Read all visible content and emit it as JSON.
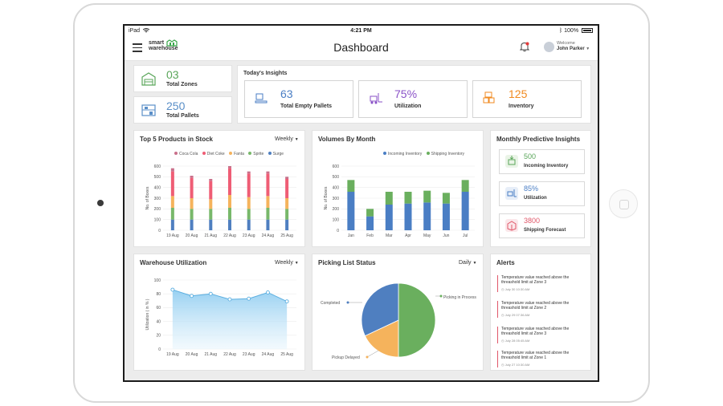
{
  "status_bar": {
    "device": "iPad",
    "wifi_icon": "wifi-icon",
    "time": "4:21 PM",
    "bluetooth_icon": "bluetooth-icon",
    "battery": "100%"
  },
  "header": {
    "menu_icon": "hamburger-icon",
    "logo_line1": "smart",
    "logo_line2": "warehouse",
    "title": "Dashboard",
    "bell_icon": "bell-icon",
    "welcome": "Welcome",
    "user_name": "John Parker"
  },
  "zones": {
    "value": "03",
    "label": "Total Zones",
    "color": "#5aa65a"
  },
  "pallets": {
    "value": "250",
    "label": "Total Pallets",
    "color": "#5a8fc8"
  },
  "insights": {
    "title": "Today's Insights",
    "items": [
      {
        "value": "63",
        "label": "Total Empty Pallets",
        "color": "#4a7ec4"
      },
      {
        "value": "75%",
        "label": "Utilization",
        "color": "#8a52c7"
      },
      {
        "value": "125",
        "label": "Inventory",
        "color": "#f08a1f"
      }
    ]
  },
  "top_products": {
    "title": "Top 5 Products in Stock",
    "filter": "Weekly",
    "legend": [
      "Coca Cola",
      "Diet Coke",
      "Fanta",
      "Sprite",
      "Surge"
    ],
    "ylabel": "No. of Boxes",
    "yticks": [
      "600",
      "500",
      "400",
      "300",
      "200",
      "100",
      "0"
    ]
  },
  "volumes": {
    "title": "Volumes By Month",
    "legend": [
      "Incoming Inventory",
      "Shipping Inventory"
    ],
    "ylabel": "No. of Boxes",
    "yticks": [
      "600",
      "500",
      "400",
      "300",
      "200",
      "100",
      "0"
    ]
  },
  "predictive": {
    "title": "Monthly Predictive Insights",
    "items": [
      {
        "value": "500",
        "label": "Incoming Inventory",
        "color": "#5aa65a"
      },
      {
        "value": "85%",
        "label": "Utilization",
        "color": "#4a7ec4"
      },
      {
        "value": "3800",
        "label": "Shipping Forecast",
        "color": "#e0586a"
      }
    ]
  },
  "warehouse_util": {
    "title": "Warehouse Utilization",
    "filter": "Weekly",
    "ylabel": "Utilization ( in % )",
    "yticks": [
      "100",
      "80",
      "60",
      "40",
      "20",
      "0"
    ]
  },
  "picking": {
    "title": "Picking List Status",
    "filter": "Daily",
    "labels": {
      "process": "Picking in Process",
      "completed": "Completed",
      "delayed": "Pickup Delayed"
    }
  },
  "alerts": {
    "title": "Alerts",
    "items": [
      {
        "text1": "Temperature value reached above the",
        "text2": "threashold limit at Zone 3",
        "time": "July 30 10:30 AM"
      },
      {
        "text1": "Temperature value reached above the",
        "text2": "threashold limit at Zone 2",
        "time": "July 29 07:36 AM"
      },
      {
        "text1": "Temperature value reached above the",
        "text2": "threashold limit at Zone 3",
        "time": "July 28 05:45 AM"
      },
      {
        "text1": "Temperature value reached above the",
        "text2": "threashold limit at Zone 1",
        "time": "July 27 10:30 AM"
      }
    ]
  },
  "chart_data": [
    {
      "type": "bar",
      "stacked": true,
      "title": "Top 5 Products in Stock",
      "ylabel": "No. of Boxes",
      "ylim": [
        0,
        600
      ],
      "categories": [
        "19 Aug",
        "20 Aug",
        "21 Aug",
        "22 Aug",
        "23 Aug",
        "24 Aug",
        "25 Aug"
      ],
      "colors": [
        "#c9708b",
        "#ef5d75",
        "#f5b35c",
        "#78b86a",
        "#4f7fc0"
      ],
      "series": [
        {
          "name": "Surge",
          "values": [
            100,
            100,
            100,
            100,
            100,
            100,
            100
          ]
        },
        {
          "name": "Sprite",
          "values": [
            110,
            100,
            100,
            110,
            100,
            110,
            100
          ]
        },
        {
          "name": "Fanta",
          "values": [
            110,
            100,
            90,
            120,
            110,
            110,
            100
          ]
        },
        {
          "name": "Diet Coke",
          "values": [
            230,
            190,
            170,
            250,
            220,
            210,
            180
          ]
        },
        {
          "name": "Coca Cola",
          "values": [
            30,
            20,
            20,
            20,
            20,
            20,
            20
          ]
        }
      ]
    },
    {
      "type": "bar",
      "stacked": true,
      "title": "Volumes By Month",
      "ylabel": "No. of Boxes",
      "ylim": [
        0,
        600
      ],
      "categories": [
        "Jan",
        "Feb",
        "Mar",
        "Apr",
        "May",
        "Jun",
        "Jul"
      ],
      "colors": [
        "#6aaf5e",
        "#4a7ec4"
      ],
      "series": [
        {
          "name": "Shipping Inventory",
          "values": [
            360,
            130,
            240,
            250,
            260,
            250,
            360
          ]
        },
        {
          "name": "Incoming Inventory",
          "values": [
            110,
            70,
            120,
            110,
            110,
            100,
            110
          ]
        }
      ]
    },
    {
      "type": "area",
      "title": "Warehouse Utilization",
      "ylabel": "Utilization ( in % )",
      "ylim": [
        0,
        100
      ],
      "categories": [
        "19 Aug",
        "20 Aug",
        "21 Aug",
        "22 Aug",
        "23 Aug",
        "24 Aug",
        "25 Aug"
      ],
      "values": [
        86,
        77,
        80,
        72,
        73,
        82,
        69
      ],
      "color": "#5aaee0"
    },
    {
      "type": "pie",
      "title": "Picking List Status",
      "slices": [
        {
          "label": "Picking in Process",
          "value": 50,
          "color": "#6aaf5e"
        },
        {
          "label": "Pickup Delayed",
          "value": 18,
          "color": "#f5b35c"
        },
        {
          "label": "Completed",
          "value": 32,
          "color": "#4f7fc0"
        }
      ]
    }
  ]
}
